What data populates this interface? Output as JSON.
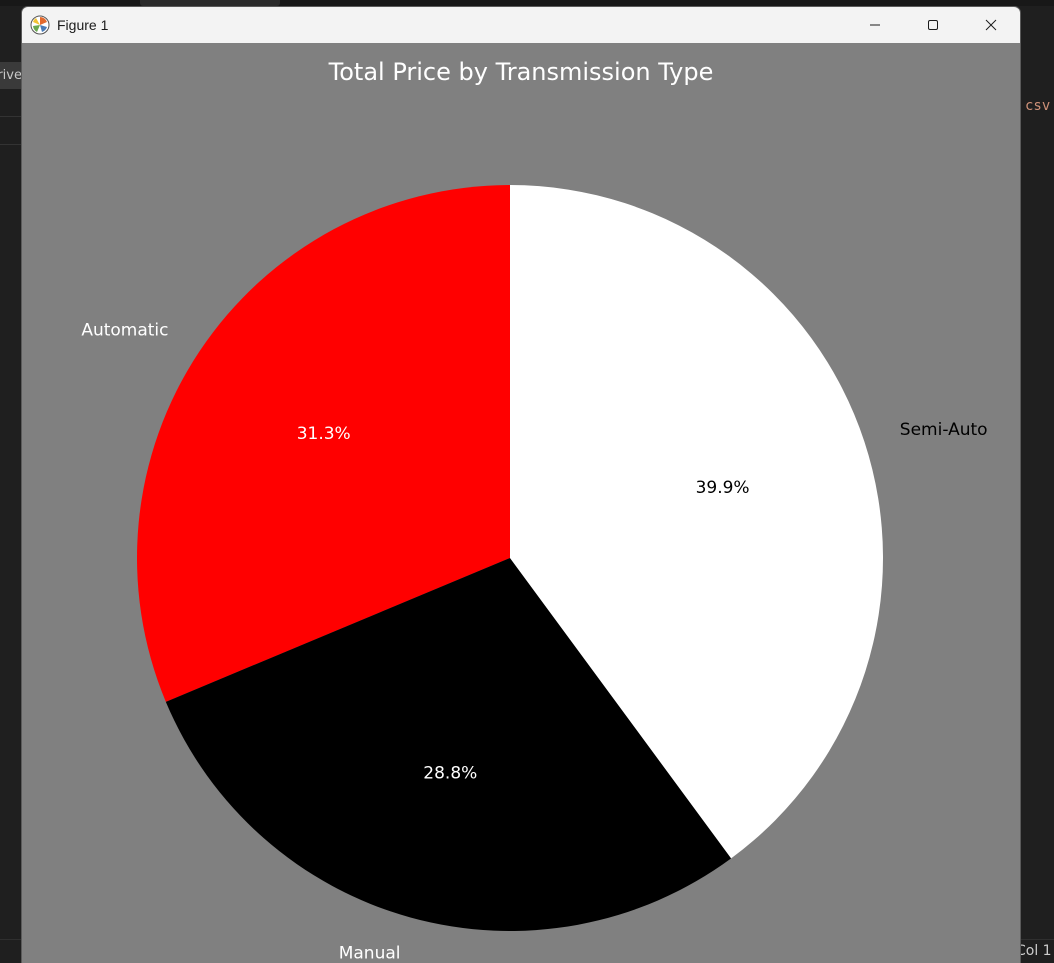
{
  "window": {
    "title": "Figure 1"
  },
  "icons": {
    "app": "matplotlib-icon",
    "minimize": "minimize-icon",
    "maximize": "maximize-icon",
    "close": "close-icon"
  },
  "background": {
    "left_fragment": "Drive",
    "right_fragment": "csv",
    "status_fragment": "Col 1"
  },
  "chart_data": {
    "type": "pie",
    "title": "Total Price by Transmission Type",
    "start_angle_deg": 90,
    "direction": "counterclockwise",
    "autopct_format": "%1.1f%%",
    "slices": [
      {
        "label": "Automatic",
        "value": 31.3,
        "pct_label": "31.3%",
        "color": "#ff0000",
        "label_color": "#ffffff",
        "pct_color": "#ffffff"
      },
      {
        "label": "Manual",
        "value": 28.8,
        "pct_label": "28.8%",
        "color": "#000000",
        "label_color": "#ffffff",
        "pct_color": "#ffffff"
      },
      {
        "label": "Semi-Auto",
        "value": 39.9,
        "pct_label": "39.9%",
        "color": "#ffffff",
        "label_color": "#000000",
        "pct_color": "#000000"
      }
    ],
    "background_color": "#808080",
    "legend": "none"
  }
}
